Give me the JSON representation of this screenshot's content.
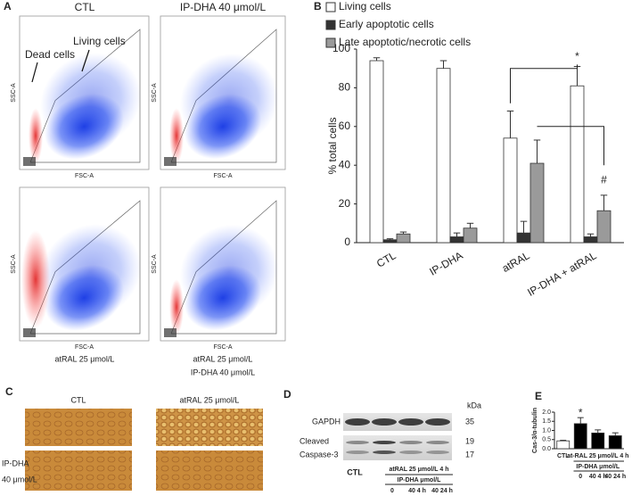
{
  "panel_a": {
    "letter": "A",
    "titles": [
      "CTL",
      "IP-DHA 40 μmol/L"
    ],
    "captions": [
      [
        "atRAL 25 μmol/L"
      ],
      [
        "atRAL 25 μmol/L",
        "IP-DHA 40 μmol/L"
      ]
    ],
    "annotations": [
      "Dead cells",
      "Living cells"
    ],
    "x_axis_label": "FSC-A",
    "y_axis_label": "SSC-A"
  },
  "chart_data": [
    {
      "type": "bar",
      "letter": "B",
      "y_label": "% total cells",
      "categories": [
        "CTL",
        "IP-DHA",
        "atRAL",
        "IP-DHA + atRAL"
      ],
      "series": [
        {
          "name": "Living cells",
          "color": "#ffffff",
          "values": [
            94,
            90,
            54,
            81
          ],
          "errors": [
            1.5,
            4,
            14,
            10
          ]
        },
        {
          "name": "Early apoptotic cells",
          "color": "#333333",
          "values": [
            1.5,
            3,
            5,
            3
          ],
          "errors": [
            0.5,
            2,
            6,
            1.5
          ]
        },
        {
          "name": "Late apoptotic/necrotic cells",
          "color": "#9a9a9a",
          "values": [
            4.5,
            7.5,
            41,
            16.5
          ],
          "errors": [
            1,
            2.5,
            12,
            8
          ]
        }
      ],
      "ylim": [
        0,
        100
      ],
      "yticks": [
        0,
        20,
        40,
        60,
        80,
        100
      ],
      "annotations": [
        "*",
        "#"
      ]
    },
    {
      "type": "bar",
      "letter": "E",
      "y_label": "Cas-3/α-tubulin",
      "categories": [
        "CTL",
        "0",
        "40 4 h",
        "40 24 h"
      ],
      "group_labels": [
        "at-RAL 25 μmol/L 4 h",
        "IP-DHA μmol/L"
      ],
      "values": [
        0.43,
        1.37,
        0.86,
        0.71
      ],
      "errors": [
        0.03,
        0.33,
        0.17,
        0.16
      ],
      "colors": [
        "#ffffff",
        "#000000",
        "#000000",
        "#000000"
      ],
      "ylim": [
        0,
        2
      ],
      "yticks": [
        {
          "value": 0,
          "label": "0.0"
        },
        {
          "value": 0.5,
          "label": "0.5"
        },
        {
          "value": 1,
          "label": "1.0"
        },
        {
          "value": 1.5,
          "label": "1.5"
        },
        {
          "value": 2,
          "label": "2.0"
        }
      ],
      "annotations": [
        "*"
      ]
    }
  ],
  "panel_c": {
    "letter": "C",
    "column_labels": [
      "CTL",
      "atRAL 25 μmol/L"
    ],
    "row_label": [
      "IP-DHA",
      "40 μmol/L"
    ]
  },
  "panel_d": {
    "letter": "D",
    "unit": "kDa",
    "gapdh": "GAPDH",
    "gapdh_size": 35,
    "caspase": [
      "Cleaved",
      "Caspase-3"
    ],
    "caspase_sizes": [
      19,
      17
    ],
    "control": "CTL",
    "treatment": "atRAL 25 μmol/L 4 h",
    "sub_header": "IP-DHA μmol/L",
    "lane_labels": [
      "0",
      "40 4 h",
      "40 24 h"
    ]
  }
}
